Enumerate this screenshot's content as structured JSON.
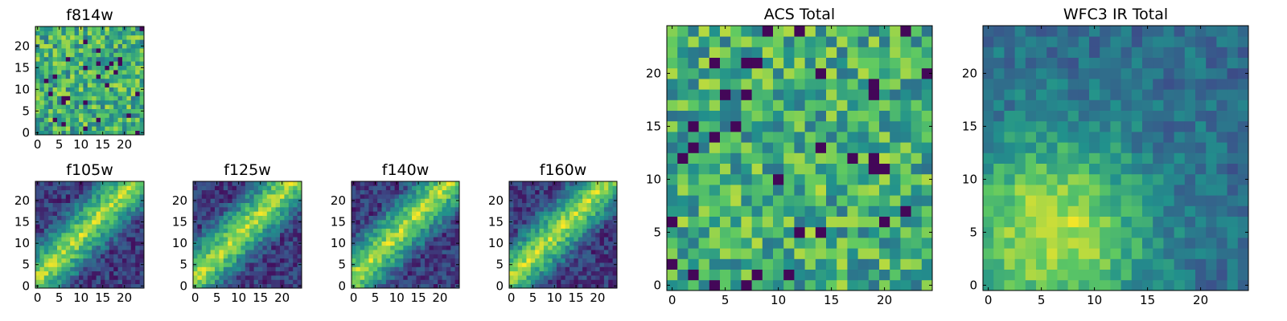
{
  "chart_data": [
    {
      "type": "heatmap",
      "title": "f814w",
      "grid_size": 25,
      "x_ticks": [
        "0",
        "5",
        "10",
        "15",
        "20"
      ],
      "y_ticks": [
        "0",
        "5",
        "10",
        "15",
        "20"
      ],
      "colormap": "viridis",
      "pattern": "noise",
      "seed": 11
    },
    {
      "type": "heatmap",
      "title": "f105w",
      "grid_size": 25,
      "x_ticks": [
        "0",
        "5",
        "10",
        "15",
        "20"
      ],
      "y_ticks": [
        "0",
        "5",
        "10",
        "15",
        "20"
      ],
      "colormap": "viridis",
      "pattern": "diagonal",
      "seed": 23
    },
    {
      "type": "heatmap",
      "title": "f125w",
      "grid_size": 25,
      "x_ticks": [
        "0",
        "5",
        "10",
        "15",
        "20"
      ],
      "y_ticks": [
        "0",
        "5",
        "10",
        "15",
        "20"
      ],
      "colormap": "viridis",
      "pattern": "diagonal",
      "seed": 37
    },
    {
      "type": "heatmap",
      "title": "f140w",
      "grid_size": 25,
      "x_ticks": [
        "0",
        "5",
        "10",
        "15",
        "20"
      ],
      "y_ticks": [
        "0",
        "5",
        "10",
        "15",
        "20"
      ],
      "colormap": "viridis",
      "pattern": "diagonal",
      "seed": 41
    },
    {
      "type": "heatmap",
      "title": "f160w",
      "grid_size": 25,
      "x_ticks": [
        "0",
        "5",
        "10",
        "15",
        "20"
      ],
      "y_ticks": [
        "0",
        "5",
        "10",
        "15",
        "20"
      ],
      "colormap": "viridis",
      "pattern": "diagonal",
      "seed": 53
    },
    {
      "type": "heatmap",
      "title": "ACS Total",
      "grid_size": 25,
      "x_ticks": [
        "0",
        "5",
        "10",
        "15",
        "20"
      ],
      "y_ticks": [
        "0",
        "5",
        "10",
        "15",
        "20"
      ],
      "colormap": "viridis",
      "pattern": "noise",
      "seed": 67
    },
    {
      "type": "heatmap",
      "title": "WFC3 IR Total",
      "grid_size": 25,
      "x_ticks": [
        "0",
        "5",
        "10",
        "15",
        "20"
      ],
      "y_ticks": [
        "0",
        "5",
        "10",
        "15",
        "20"
      ],
      "colormap": "viridis",
      "pattern": "blob",
      "seed": 79
    }
  ],
  "colors": {
    "viridis_stops": [
      "#440154",
      "#3b528b",
      "#21918c",
      "#5ec962",
      "#fde725"
    ]
  }
}
